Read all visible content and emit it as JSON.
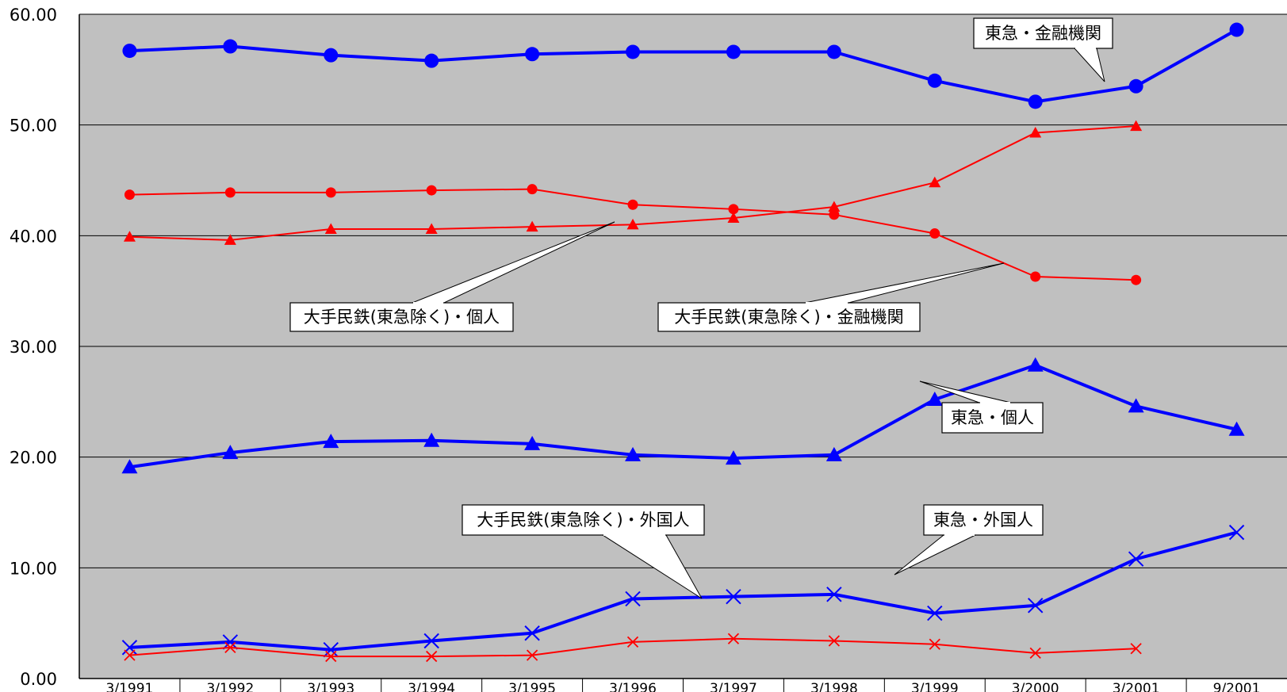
{
  "chart_data": {
    "type": "line",
    "categories": [
      "3/1991",
      "3/1992",
      "3/1993",
      "3/1994",
      "3/1995",
      "3/1996",
      "3/1997",
      "3/1998",
      "3/1999",
      "3/2000",
      "3/2001",
      "9/2001"
    ],
    "ylim": [
      0,
      60
    ],
    "yticks": [
      "0.00",
      "10.00",
      "20.00",
      "30.00",
      "40.00",
      "50.00",
      "60.00"
    ],
    "grid": true,
    "background": "#c0c0c0",
    "series": [
      {
        "name": "東急・金融機関",
        "color": "#0000ff",
        "marker": "circle",
        "weight": "bold",
        "values": [
          56.7,
          57.1,
          56.3,
          55.8,
          56.4,
          56.6,
          56.6,
          56.6,
          54.0,
          52.1,
          53.5,
          58.6
        ]
      },
      {
        "name": "大手民鉄(東急除く)・金融機関",
        "color": "#ff0000",
        "marker": "circle",
        "weight": "thin",
        "values": [
          43.7,
          43.9,
          43.9,
          44.1,
          44.2,
          42.8,
          42.4,
          41.9,
          40.2,
          36.3,
          36.0,
          null
        ]
      },
      {
        "name": "大手民鉄(東急除く)・個人",
        "color": "#ff0000",
        "marker": "triangle",
        "weight": "thin",
        "values": [
          39.9,
          39.6,
          40.6,
          40.6,
          40.8,
          41.0,
          41.6,
          42.6,
          44.8,
          49.3,
          49.9,
          null
        ]
      },
      {
        "name": "東急・個人",
        "color": "#0000ff",
        "marker": "triangle",
        "weight": "bold",
        "values": [
          19.1,
          20.4,
          21.4,
          21.5,
          21.2,
          20.2,
          19.9,
          20.2,
          25.2,
          28.3,
          24.6,
          22.5
        ]
      },
      {
        "name": "東急・外国人",
        "color": "#0000ff",
        "marker": "x",
        "weight": "bold",
        "values": [
          2.8,
          3.3,
          2.6,
          3.4,
          4.1,
          7.2,
          7.4,
          7.6,
          5.9,
          6.6,
          10.8,
          13.2
        ]
      },
      {
        "name": "大手民鉄(東急除く)・外国人",
        "color": "#ff0000",
        "marker": "x",
        "weight": "thin",
        "values": [
          2.1,
          2.8,
          2.0,
          2.0,
          2.1,
          3.3,
          3.6,
          3.4,
          3.1,
          2.3,
          2.7,
          null
        ]
      }
    ],
    "annotations": [
      {
        "text": "東急・金融機関",
        "series": 0,
        "point": 10
      },
      {
        "text": "大手民鉄(東急除く)・個人",
        "series": 2,
        "point": 5
      },
      {
        "text": "大手民鉄(東急除く)・金融機関",
        "series": 1,
        "point": 9
      },
      {
        "text": "東急・個人",
        "series": 3,
        "point": 8
      },
      {
        "text": "大手民鉄(東急除く)・外国人",
        "series": 5,
        "point": 6
      },
      {
        "text": "東急・外国人",
        "series": 4,
        "point": 8
      }
    ]
  }
}
